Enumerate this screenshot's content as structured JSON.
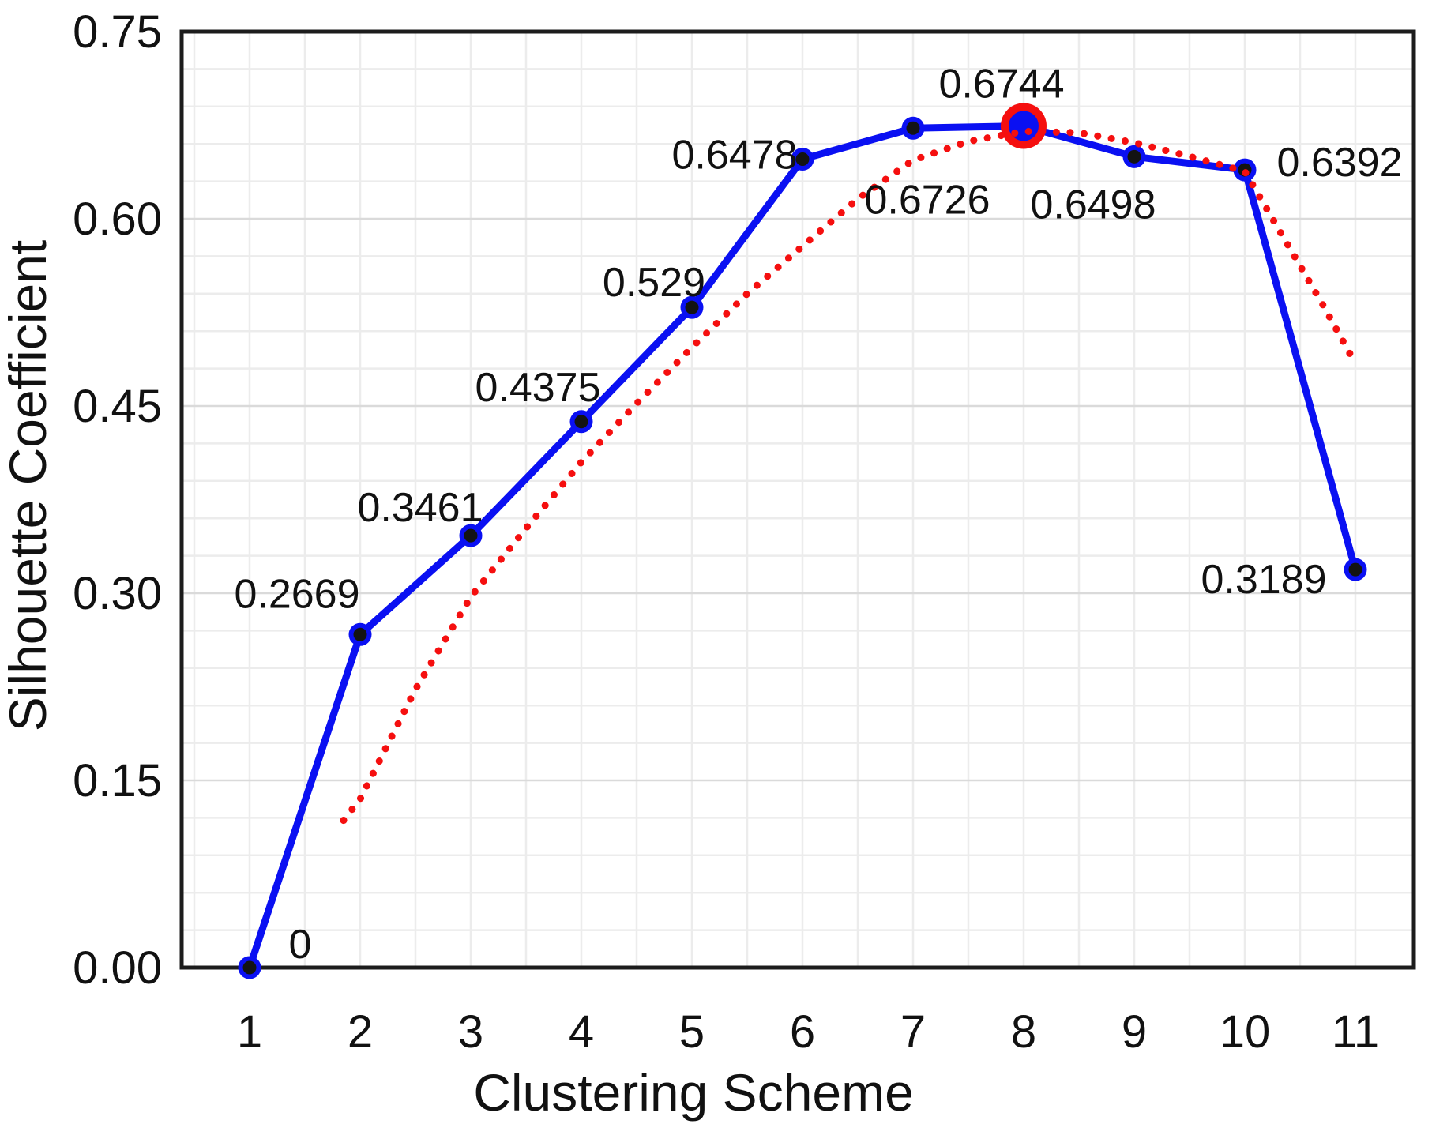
{
  "chart_data": {
    "type": "line",
    "title": "",
    "xlabel": "Clustering Scheme",
    "ylabel": "Silhouette Coefficient",
    "x": [
      1,
      2,
      3,
      4,
      5,
      6,
      7,
      8,
      9,
      10,
      11
    ],
    "x_tick_labels": [
      "1",
      "2",
      "3",
      "4",
      "5",
      "6",
      "7",
      "8",
      "9",
      "10",
      "11"
    ],
    "y_ticks": [
      0.0,
      0.15,
      0.3,
      0.45,
      0.6,
      0.75
    ],
    "y_tick_labels": [
      "0.00",
      "0.15",
      "0.30",
      "0.45",
      "0.60",
      "0.75"
    ],
    "ylim": [
      0,
      0.75
    ],
    "grid": {
      "show": true,
      "minor_y_step": 0.03,
      "major_y_step": 0.15,
      "minor_x_step": 0.5
    },
    "legend": "none",
    "series": [
      {
        "name": "silhouette-coefficient",
        "style": "solid",
        "color": "#0a10f2",
        "marker_fill": "#0a10f2",
        "marker_center": "#131313",
        "values": [
          0,
          0.2669,
          0.3461,
          0.4375,
          0.529,
          0.6478,
          0.6726,
          0.6744,
          0.6498,
          0.6392,
          0.3189
        ],
        "point_labels": [
          "0",
          "0.2669",
          "0.3461",
          "0.4375",
          "0.529",
          "0.6478",
          "0.6726",
          "0.6744",
          "0.6498",
          "0.6392",
          "0.3189"
        ]
      },
      {
        "name": "trend",
        "style": "dotted",
        "color": "#f50f0f",
        "points": [
          [
            1.85,
            0.118
          ],
          [
            2,
            0.135
          ],
          [
            2.5,
            0.223
          ],
          [
            3,
            0.297
          ],
          [
            3.5,
            0.352
          ],
          [
            4,
            0.405
          ],
          [
            4.5,
            0.452
          ],
          [
            5,
            0.497
          ],
          [
            5.5,
            0.54
          ],
          [
            6,
            0.578
          ],
          [
            6.5,
            0.616
          ],
          [
            7,
            0.647
          ],
          [
            7.5,
            0.662
          ],
          [
            8,
            0.67
          ],
          [
            8.5,
            0.669
          ],
          [
            9,
            0.661
          ],
          [
            9.5,
            0.65
          ],
          [
            10,
            0.638
          ],
          [
            10.35,
            0.585
          ],
          [
            10.7,
            0.532
          ],
          [
            11,
            0.484
          ]
        ]
      }
    ],
    "highlight": {
      "x": 8,
      "value": 0.6744,
      "ring_color": "#f50f0f",
      "inner_color": "#0a10f2"
    }
  }
}
